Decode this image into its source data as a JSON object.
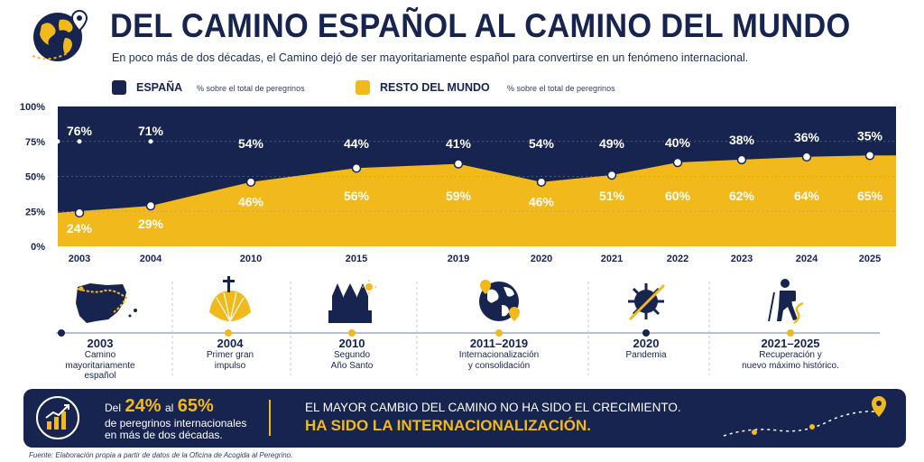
{
  "header": {
    "title": "DEL CAMINO ESPAÑOL AL CAMINO DEL MUNDO",
    "subtitle": "En poco más de dos décadas, el Camino dejó de ser mayoritariamente español para convertirse en un fenómeno internacional."
  },
  "legend": {
    "items": [
      {
        "name": "ESPAÑA",
        "note": "% sobre el total de peregrinos",
        "color": "#16244f"
      },
      {
        "name": "RESTO DEL MUNDO",
        "note": "% sobre el total de peregrinos",
        "color": "#f2b91d"
      }
    ]
  },
  "colors": {
    "navy": "#16244f",
    "gold": "#f2b91d",
    "white": "#ffffff"
  },
  "chart_data": {
    "type": "area",
    "stacked": true,
    "x": [
      "2003",
      "2004",
      "2010",
      "2015",
      "2019",
      "2020",
      "2021",
      "2022",
      "2023",
      "2024",
      "2025"
    ],
    "series": [
      {
        "name": "ESPAÑA",
        "values": [
          76,
          71,
          54,
          44,
          41,
          54,
          49,
          40,
          38,
          36,
          35
        ],
        "labels": [
          "76%",
          "71%",
          "54%",
          "44%",
          "41%",
          "54%",
          "49%",
          "40%",
          "38%",
          "36%",
          "35%"
        ],
        "color": "#16244f"
      },
      {
        "name": "RESTO DEL MUNDO",
        "values": [
          24,
          29,
          46,
          56,
          59,
          46,
          51,
          60,
          62,
          64,
          65
        ],
        "labels": [
          "24%",
          "29%",
          "46%",
          "56%",
          "59%",
          "46%",
          "51%",
          "60%",
          "62%",
          "64%",
          "65%"
        ],
        "color": "#f2b91d"
      }
    ],
    "yticks": [
      "100%",
      "75%",
      "50%",
      "25%",
      "0%"
    ],
    "ylim": [
      0,
      100
    ],
    "grid": true,
    "legend_position": "top"
  },
  "timeline": {
    "events": [
      {
        "year": "2003",
        "desc": [
          "Camino",
          "mayoritariamente",
          "español"
        ],
        "icon": "spain-map-icon",
        "marker": "navy"
      },
      {
        "year": "2004",
        "desc": [
          "Primer gran",
          "impulso"
        ],
        "icon": "scallop-shell-icon",
        "marker": "gold"
      },
      {
        "year": "2010",
        "desc": [
          "Segundo",
          "Año Santo"
        ],
        "icon": "cathedral-icon",
        "marker": "gold"
      },
      {
        "year": "2011–2019",
        "desc": [
          "Internacionalización",
          "y consolidación"
        ],
        "icon": "globe-pin-icon",
        "marker": "gold"
      },
      {
        "year": "2020",
        "desc": [
          "Pandemia"
        ],
        "icon": "virus-icon",
        "marker": "navy"
      },
      {
        "year": "2021–2025",
        "desc": [
          "Recuperación y",
          "nuevo máximo histórico."
        ],
        "icon": "hiker-icon",
        "marker": "gold"
      }
    ]
  },
  "banner": {
    "del": "Del",
    "from_pct": "24%",
    "al": "al",
    "to_pct": "65%",
    "line1": "de peregrinos internacionales",
    "line2": "en más de dos décadas.",
    "message1": "EL MAYOR CAMBIO DEL CAMINO NO HA SIDO EL CRECIMIENTO.",
    "message2": "HA SIDO LA INTERNACIONALIZACIÓN."
  },
  "source": "Fuente: Elaboración propia a partir de datos de la Oficina de Acogida al Peregrino."
}
